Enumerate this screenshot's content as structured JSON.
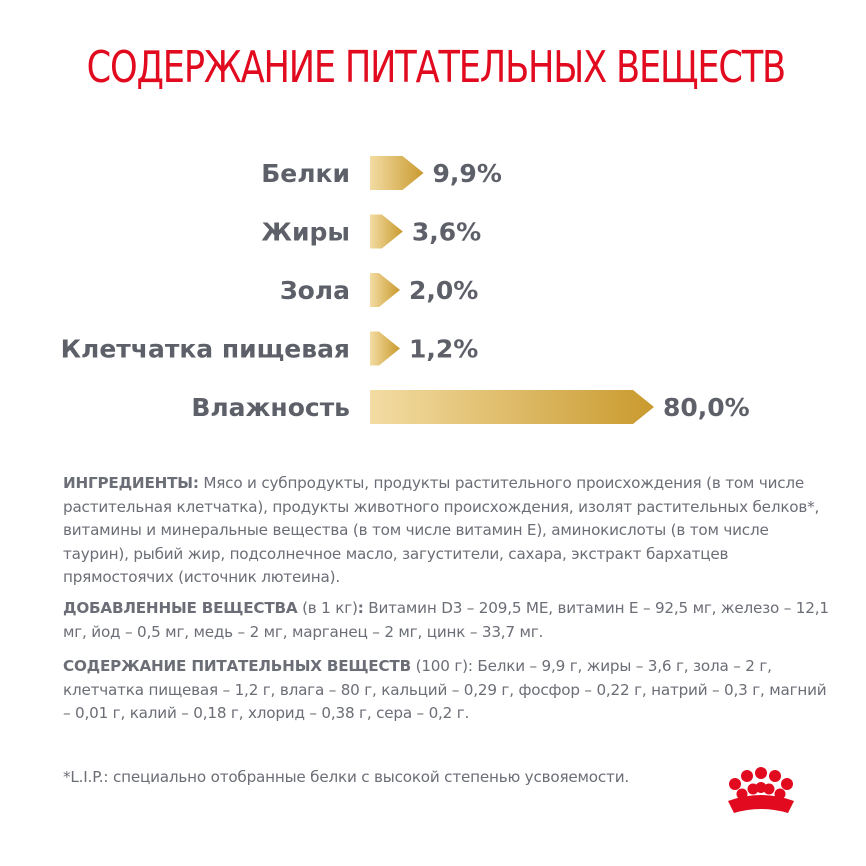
{
  "chart_data": {
    "type": "bar",
    "orientation": "horizontal",
    "title": "СОДЕРЖАНИЕ ПИТАТЕЛЬНЫХ ВЕЩЕСТВ",
    "categories": [
      "Белки",
      "Жиры",
      "Зола",
      "Клетчатка пищевая",
      "Влажность"
    ],
    "values": [
      9.9,
      3.6,
      2.0,
      1.2,
      80.0
    ],
    "value_labels": [
      "9,9%",
      "3,6%",
      "2,0%",
      "1,2%",
      "80,0%"
    ],
    "bar_colors": [
      "#f3dca3",
      "#c99a2e"
    ],
    "grid": false,
    "legend": "none"
  },
  "ingredients": {
    "heading": "ИНГРЕДИЕНТЫ:",
    "text": " Мясо и субпродукты, продукты растительного происхождения (в том числе растительная клетчатка), продукты животного происхождения, изолят растительных белков*, витамины и минеральные вещества (в том числе витамин Е), аминокислоты (в том числе таурин), рыбий жир, подсолнечное масло, загустители, сахара, экстракт бархатцев прямостоячих (источник лютеина)."
  },
  "additives": {
    "heading": "ДОБАВЛЕННЫЕ ВЕЩЕСТВА",
    "unit": " (в 1 кг)",
    "colon": ":",
    "text": " Витамин D3 – 209,5 МЕ, витамин Е – 92,5 мг, железо – 12,1 мг, йод – 0,5 мг, медь – 2 мг, марганец – 2 мг, цинк – 33,7 мг."
  },
  "nutrients": {
    "heading": "СОДЕРЖАНИЕ ПИТАТЕЛЬНЫХ ВЕЩЕСТВ",
    "text": " (100 г): Белки – 9,9 г, жиры – 3,6 г, зола – 2 г, клетчатка пищевая – 1,2 г, влага – 80 г, кальций – 0,29 г, фосфор – 0,22 г, натрий – 0,3 г, магний – 0,01 г, калий – 0,18 г, хлорид – 0,38 г, сера – 0,2 г."
  },
  "footnote": "*L.I.P.: специально отобранные белки с высокой степенью усвояемости.",
  "logo": {
    "icon": "royal-crown-icon",
    "color": "#e10a1e"
  }
}
